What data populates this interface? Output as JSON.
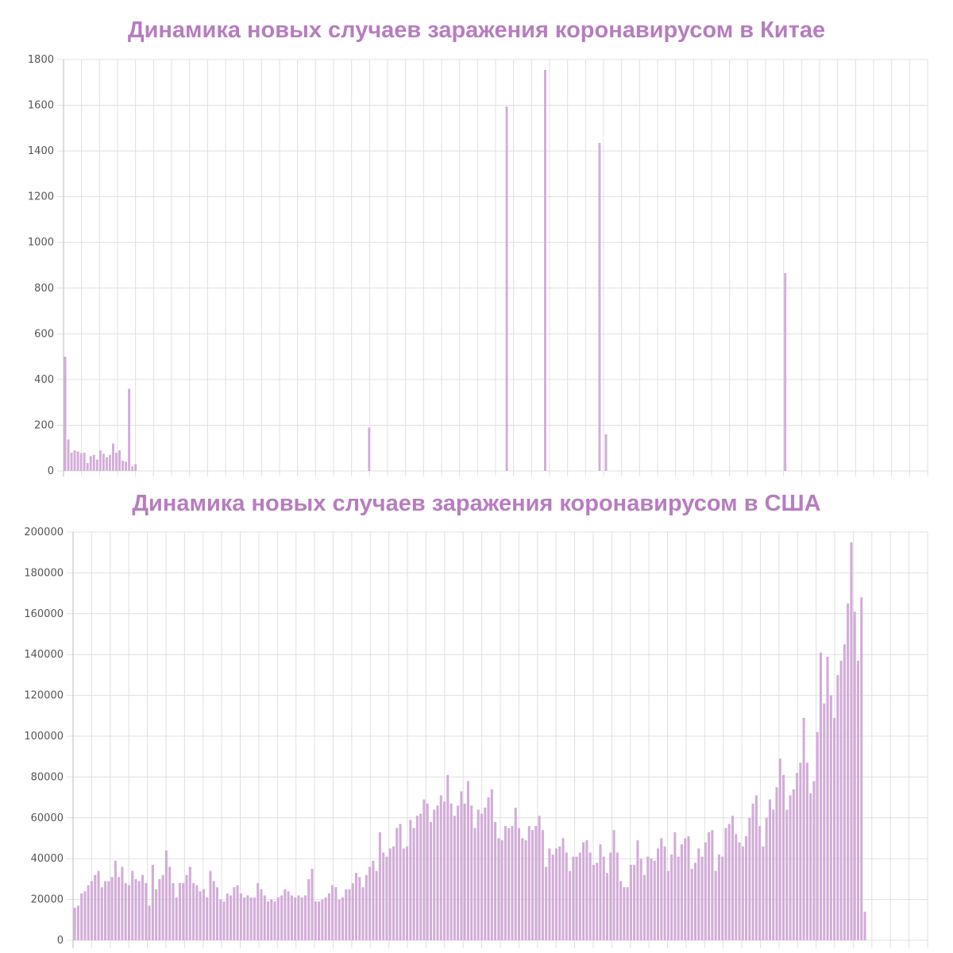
{
  "colors": {
    "title": "#b77cc0",
    "bar": "#d2acd8",
    "grid": "#e0e0e0"
  },
  "chart_data": [
    {
      "type": "bar",
      "title": "Динамика новых случаев заражения коронавирусом в Китае",
      "xlabel": "",
      "ylabel": "",
      "ylim": [
        0,
        1800
      ],
      "yticks": [
        0,
        200,
        400,
        600,
        800,
        1000,
        1200,
        1400,
        1600,
        1800
      ],
      "grid": true,
      "legend": "none",
      "bar_count": 270,
      "vertical_gridlines": 48,
      "values": [
        500,
        138,
        80,
        90,
        85,
        78,
        80,
        35,
        65,
        70,
        50,
        90,
        75,
        60,
        70,
        120,
        80,
        90,
        45,
        40,
        360,
        20,
        30,
        0,
        0,
        0,
        0,
        0,
        0,
        0,
        0,
        0,
        0,
        0,
        0,
        0,
        0,
        0,
        0,
        0,
        0,
        0,
        0,
        0,
        0,
        0,
        0,
        0,
        0,
        0,
        0,
        0,
        0,
        0,
        0,
        0,
        0,
        0,
        0,
        0,
        0,
        0,
        0,
        0,
        0,
        0,
        0,
        0,
        0,
        0,
        0,
        0,
        0,
        0,
        0,
        0,
        0,
        0,
        0,
        0,
        0,
        0,
        0,
        0,
        0,
        0,
        0,
        0,
        0,
        0,
        0,
        0,
        0,
        0,
        0,
        190,
        0,
        0,
        0,
        0,
        0,
        0,
        0,
        0,
        0,
        0,
        0,
        0,
        0,
        0,
        0,
        0,
        0,
        0,
        0,
        0,
        0,
        0,
        0,
        0,
        0,
        0,
        0,
        0,
        0,
        0,
        0,
        0,
        0,
        0,
        0,
        0,
        0,
        0,
        0,
        0,
        0,
        0,
        1595,
        0,
        0,
        0,
        0,
        0,
        0,
        0,
        0,
        0,
        0,
        0,
        1755,
        0,
        0,
        0,
        0,
        0,
        0,
        0,
        0,
        0,
        0,
        0,
        0,
        0,
        0,
        0,
        0,
        1435,
        0,
        160,
        0,
        0,
        0,
        0,
        0,
        0,
        0,
        0,
        0,
        0,
        0,
        0,
        0,
        0,
        0,
        0,
        0,
        0,
        0,
        0,
        0,
        0,
        0,
        0,
        0,
        0,
        0,
        0,
        0,
        0,
        0,
        0,
        0,
        0,
        0,
        0,
        0,
        0,
        0,
        0,
        0,
        0,
        0,
        0,
        0,
        0,
        0,
        0,
        0,
        0,
        0,
        0,
        0,
        0,
        0,
        865,
        0,
        0,
        0,
        0,
        0,
        0,
        0,
        0,
        0,
        0,
        0,
        0,
        0,
        0,
        0,
        0,
        0,
        0,
        0,
        0,
        0,
        0,
        0,
        0,
        0,
        0,
        0,
        0,
        0,
        0,
        0,
        0,
        0,
        0,
        0,
        0,
        0,
        0,
        0,
        0,
        0,
        0,
        0,
        0
      ]
    },
    {
      "type": "bar",
      "title": "Динамика новых случаев заражения коронавирусом в США",
      "xlabel": "",
      "ylabel": "",
      "ylim": [
        0,
        200000
      ],
      "yticks": [
        0,
        20000,
        40000,
        60000,
        80000,
        100000,
        120000,
        140000,
        160000,
        180000,
        200000
      ],
      "grid": true,
      "legend": "none",
      "bar_count": 252,
      "vertical_gridlines": 46,
      "values": [
        16000,
        17000,
        23000,
        24000,
        27000,
        29000,
        32000,
        34000,
        26000,
        29000,
        29000,
        31000,
        39000,
        31000,
        36000,
        28000,
        27000,
        34000,
        30000,
        29000,
        32000,
        28000,
        17000,
        37000,
        25000,
        30000,
        32000,
        44000,
        36000,
        28000,
        21000,
        28000,
        28000,
        32000,
        36000,
        28000,
        27000,
        24000,
        25000,
        21000,
        34000,
        29000,
        26000,
        20000,
        19000,
        23000,
        22000,
        26000,
        27000,
        23000,
        21000,
        22000,
        21000,
        21000,
        28000,
        25000,
        22000,
        19000,
        20000,
        19000,
        21000,
        22000,
        25000,
        24000,
        22000,
        21000,
        22000,
        21000,
        22000,
        30000,
        35000,
        19000,
        19000,
        20000,
        21000,
        23000,
        27000,
        26000,
        20000,
        21000,
        25000,
        25000,
        28000,
        33000,
        31000,
        26000,
        32000,
        36000,
        39000,
        34000,
        53000,
        43000,
        41000,
        45000,
        46000,
        55000,
        57000,
        45000,
        46000,
        59000,
        55000,
        61000,
        62000,
        69000,
        67000,
        58000,
        64000,
        66000,
        71000,
        68000,
        81000,
        67000,
        61000,
        66000,
        73000,
        67000,
        78000,
        66000,
        55000,
        64000,
        62000,
        65000,
        70000,
        74000,
        58000,
        50000,
        49000,
        56000,
        55000,
        56000,
        65000,
        55000,
        50000,
        49000,
        56000,
        54000,
        56000,
        61000,
        54000,
        36000,
        45000,
        42000,
        45000,
        46000,
        50000,
        43000,
        34000,
        41000,
        41000,
        43000,
        48000,
        49000,
        43000,
        37000,
        38000,
        47000,
        41000,
        33000,
        43000,
        54000,
        43000,
        29000,
        26000,
        26000,
        37000,
        37000,
        49000,
        40000,
        32000,
        41000,
        40000,
        39000,
        45000,
        50000,
        46000,
        34000,
        42000,
        53000,
        41000,
        47000,
        50000,
        51000,
        35000,
        38000,
        45000,
        41000,
        48000,
        53000,
        54000,
        34000,
        42000,
        41000,
        55000,
        57000,
        61000,
        52000,
        48000,
        46000,
        51000,
        60000,
        67000,
        71000,
        56000,
        46000,
        60000,
        69000,
        64000,
        75000,
        89000,
        81000,
        64000,
        71000,
        74000,
        82000,
        87000,
        109000,
        87000,
        72000,
        78000,
        102000,
        141000,
        116000,
        139000,
        120000,
        109000,
        130000,
        137000,
        145000,
        165000,
        195000,
        161000,
        137000,
        168000,
        14000
      ]
    }
  ]
}
